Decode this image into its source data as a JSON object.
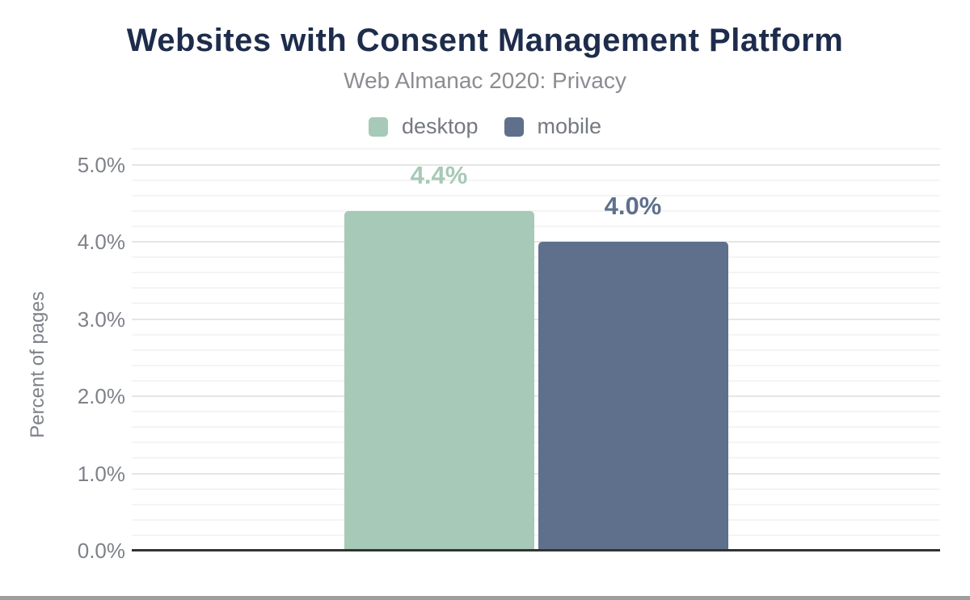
{
  "chart_data": {
    "type": "bar",
    "title": "Websites with Consent Management Platform",
    "subtitle": "Web Almanac 2020: Privacy",
    "ylabel": "Percent of pages",
    "ylim": [
      0,
      5.2
    ],
    "ytick_major_step": 1.0,
    "ytick_minor_step": 0.2,
    "yticks": [
      "0.0%",
      "1.0%",
      "2.0%",
      "3.0%",
      "4.0%",
      "5.0%"
    ],
    "grid": true,
    "legend_position": "top",
    "series": [
      {
        "name": "desktop",
        "value": 4.4,
        "label": "4.4%",
        "color": "#a7c9b8"
      },
      {
        "name": "mobile",
        "value": 4.0,
        "label": "4.0%",
        "color": "#5e708c"
      }
    ]
  },
  "colors": {
    "title": "#1e2c4c",
    "subtitle": "#8a8d91",
    "axis_text": "#7e8288",
    "legend_text": "#75797f",
    "gridline_major": "#e6e6e6",
    "gridline_minor": "#f4f4f4",
    "axis_line": "#333333",
    "bottom_divider": "#9e9e9e"
  }
}
